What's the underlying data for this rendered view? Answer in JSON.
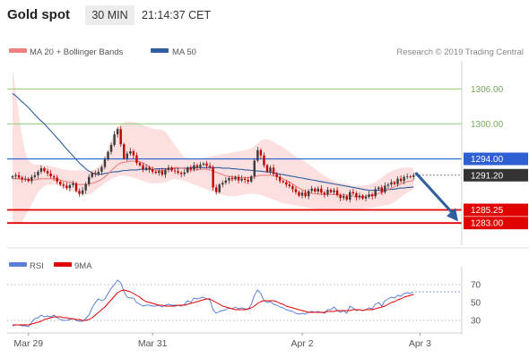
{
  "header": {
    "title": "Gold spot",
    "interval": "30 MIN",
    "time": "21:14:37 CET"
  },
  "legend": {
    "items": [
      {
        "label": "MA 20 + Bollinger Bands",
        "color": "#f08080"
      },
      {
        "label": "MA 50",
        "color": "#2f5f9e"
      }
    ]
  },
  "credit": "Research © 2019 Trading Central",
  "rsi_legend": {
    "items": [
      {
        "label": "RSI",
        "color": "#5b7fd6"
      },
      {
        "label": "9MA",
        "color": "#e00000"
      }
    ]
  },
  "colors": {
    "up": "#3a3a3a",
    "down": "#c00000",
    "resistance": "#8fd07a",
    "support": "#e00000",
    "pivot": "#2e5fd3",
    "band_fill": "#fbdada",
    "ma20": "#f08080",
    "ma50": "#2f5f9e",
    "arrow": "#2f5f9e",
    "last_price_tag": "#333333"
  },
  "chart_data": [
    {
      "type": "candlestick",
      "title": "Gold spot",
      "interval": "30 MIN",
      "ylim": [
        1279.5,
        1310.5
      ],
      "x_ticks": [
        "Mar 29",
        "Mar 31",
        "Apr 2",
        "Apr 3"
      ],
      "y_ticks": [
        1306.0,
        1300.0,
        1294.0,
        1291.2,
        1285.25,
        1283.0
      ],
      "levels": [
        {
          "value": 1306.0,
          "label": "1306.00",
          "kind": "resistance"
        },
        {
          "value": 1300.0,
          "label": "1300.00",
          "kind": "resistance"
        },
        {
          "value": 1294.0,
          "label": "1294.00",
          "kind": "pivot"
        },
        {
          "value": 1285.25,
          "label": "1285.25",
          "kind": "support"
        },
        {
          "value": 1283.0,
          "label": "1283.00",
          "kind": "support"
        }
      ],
      "last_price": {
        "value": 1291.2,
        "label": "1291.20"
      },
      "forecast_arrow": {
        "from": 1291.5,
        "to": 1284.5
      },
      "series": [
        {
          "name": "Gold spot",
          "style": "candles",
          "close": [
            1291.0,
            1291.2,
            1290.8,
            1290.5,
            1290.6,
            1290.2,
            1290.9,
            1291.2,
            1291.8,
            1292.4,
            1291.9,
            1291.5,
            1291.0,
            1290.8,
            1290.1,
            1289.6,
            1289.4,
            1289.0,
            1289.5,
            1289.8,
            1288.5,
            1288.0,
            1288.6,
            1289.7,
            1290.9,
            1291.6,
            1291.4,
            1291.8,
            1292.6,
            1293.9,
            1295.2,
            1296.4,
            1298.2,
            1299.1,
            1296.5,
            1294.1,
            1294.9,
            1295.3,
            1294.6,
            1293.3,
            1292.9,
            1292.2,
            1292.5,
            1292.2,
            1291.8,
            1291.6,
            1291.9,
            1291.3,
            1292.1,
            1292.5,
            1292.0,
            1291.9,
            1291.6,
            1291.4,
            1291.7,
            1292.5,
            1292.2,
            1292.9,
            1292.6,
            1293.0,
            1293.2,
            1292.8,
            1292.6,
            1289.1,
            1288.3,
            1289.6,
            1289.9,
            1290.3,
            1290.7,
            1290.5,
            1290.9,
            1290.3,
            1290.6,
            1290.4,
            1290.1,
            1291.0,
            1293.7,
            1295.5,
            1294.6,
            1292.9,
            1291.8,
            1292.5,
            1291.4,
            1290.9,
            1290.2,
            1290.0,
            1289.6,
            1289.3,
            1288.8,
            1288.3,
            1287.7,
            1288.2,
            1287.6,
            1288.5,
            1288.9,
            1288.4,
            1288.9,
            1288.2,
            1287.9,
            1288.7,
            1288.3,
            1288.6,
            1287.8,
            1287.3,
            1287.6,
            1287.0,
            1288.3,
            1288.1,
            1287.4,
            1287.7,
            1287.2,
            1287.5,
            1287.9,
            1287.6,
            1288.8,
            1289.1,
            1288.3,
            1289.4,
            1289.6,
            1290.0,
            1289.7,
            1290.6,
            1290.2,
            1290.9,
            1291.0,
            1290.9,
            1291.2
          ]
        },
        {
          "name": "MA 20",
          "style": "line",
          "y": [
            1290.6,
            1290.6,
            1290.6,
            1290.5,
            1290.5,
            1290.4,
            1290.4,
            1290.4,
            1290.5,
            1290.6,
            1290.6,
            1290.6,
            1290.6,
            1290.6,
            1290.5,
            1290.4,
            1290.2,
            1290.1,
            1290.0,
            1289.9,
            1289.7,
            1289.6,
            1289.6,
            1289.6,
            1289.7,
            1289.8,
            1290.0,
            1290.2,
            1290.5,
            1290.9,
            1291.4,
            1292.0,
            1292.5,
            1293.0,
            1293.3,
            1293.4,
            1293.5,
            1293.6,
            1293.6,
            1293.6,
            1293.5,
            1293.3,
            1293.0,
            1292.6,
            1292.3,
            1292.1,
            1292.0,
            1292.0,
            1292.1,
            1292.3,
            1292.4,
            1292.5,
            1292.5,
            1292.4,
            1292.3,
            1292.2,
            1292.1,
            1292.1,
            1292.1,
            1292.2,
            1292.2,
            1292.2,
            1292.1,
            1291.9,
            1291.7,
            1291.5,
            1291.3,
            1291.1,
            1291.0,
            1290.9,
            1290.9,
            1290.8,
            1290.8,
            1290.8,
            1290.8,
            1290.8,
            1290.9,
            1291.1,
            1291.2,
            1291.2,
            1291.2,
            1291.2,
            1291.1,
            1291.0,
            1290.8,
            1290.6,
            1290.3,
            1290.0,
            1289.7,
            1289.3,
            1289.0,
            1288.7,
            1288.4,
            1288.2,
            1288.1,
            1288.0,
            1288.0,
            1287.9,
            1287.9,
            1287.9,
            1287.9,
            1287.9,
            1287.9,
            1287.8,
            1287.8,
            1287.8,
            1287.7,
            1287.6,
            1287.5,
            1287.5,
            1287.5,
            1287.6,
            1287.7,
            1287.8,
            1287.9,
            1288.1,
            1288.2,
            1288.5,
            1288.7,
            1289.0,
            1289.2,
            1289.5,
            1289.7,
            1289.9,
            1290.1,
            1290.2,
            1290.3
          ]
        },
        {
          "name": "MA 50",
          "style": "line",
          "y": [
            1305.2,
            1304.8,
            1304.3,
            1303.8,
            1303.3,
            1302.8,
            1302.2,
            1301.6,
            1301.0,
            1300.5,
            1300.0,
            1299.4,
            1298.8,
            1298.2,
            1297.6,
            1297.0,
            1296.3,
            1295.7,
            1295.1,
            1294.5,
            1293.9,
            1293.3,
            1292.8,
            1292.3,
            1291.9,
            1291.6,
            1291.4,
            1291.3,
            1291.4,
            1291.5,
            1291.6,
            1291.7,
            1291.8,
            1291.8,
            1291.9,
            1292.0,
            1292.0,
            1292.1,
            1292.1,
            1292.1,
            1292.2,
            1292.2,
            1292.2,
            1292.2,
            1292.2,
            1292.3,
            1292.3,
            1292.3,
            1292.3,
            1292.3,
            1292.3,
            1292.4,
            1292.4,
            1292.4,
            1292.4,
            1292.4,
            1292.5,
            1292.5,
            1292.5,
            1292.5,
            1292.5,
            1292.5,
            1292.5,
            1292.5,
            1292.5,
            1292.5,
            1292.4,
            1292.4,
            1292.4,
            1292.3,
            1292.3,
            1292.2,
            1292.2,
            1292.1,
            1292.1,
            1292.0,
            1292.0,
            1291.9,
            1291.9,
            1291.8,
            1291.8,
            1291.7,
            1291.6,
            1291.5,
            1291.4,
            1291.3,
            1291.2,
            1291.1,
            1291.0,
            1290.9,
            1290.8,
            1290.7,
            1290.6,
            1290.5,
            1290.4,
            1290.3,
            1290.2,
            1290.1,
            1290.0,
            1289.9,
            1289.8,
            1289.7,
            1289.6,
            1289.5,
            1289.4,
            1289.3,
            1289.2,
            1289.1,
            1289.0,
            1288.9,
            1288.8,
            1288.7,
            1288.6,
            1288.6,
            1288.6,
            1288.6,
            1288.6,
            1288.7,
            1288.7,
            1288.8,
            1288.8,
            1288.9,
            1289.0,
            1289.0,
            1289.1,
            1289.1,
            1289.2
          ]
        },
        {
          "name": "Bollinger upper",
          "style": "band",
          "y": [
            1309.5,
            1305.5,
            1301.5,
            1298.0,
            1295.2,
            1293.8,
            1293.2,
            1293.0,
            1293.0,
            1293.0,
            1292.9,
            1292.9,
            1292.8,
            1292.6,
            1292.5,
            1292.3,
            1292.2,
            1292.1,
            1292.0,
            1292.0,
            1292.0,
            1292.0,
            1292.0,
            1292.0,
            1292.0,
            1292.1,
            1292.3,
            1292.7,
            1293.3,
            1294.3,
            1295.7,
            1297.2,
            1298.6,
            1299.5,
            1300.0,
            1300.3,
            1300.4,
            1300.4,
            1300.3,
            1300.2,
            1300.0,
            1299.8,
            1299.6,
            1299.4,
            1299.2,
            1299.1,
            1299.0,
            1299.0,
            1298.7,
            1298.0,
            1297.2,
            1296.4,
            1295.6,
            1294.9,
            1294.3,
            1294.0,
            1293.9,
            1293.9,
            1294.0,
            1294.1,
            1294.2,
            1294.3,
            1294.4,
            1294.5,
            1294.6,
            1294.7,
            1294.8,
            1294.9,
            1295.0,
            1295.1,
            1295.2,
            1295.3,
            1295.4,
            1295.5,
            1295.6,
            1295.8,
            1296.2,
            1296.7,
            1297.1,
            1297.4,
            1297.4,
            1297.2,
            1296.9,
            1296.6,
            1296.3,
            1296.0,
            1295.6,
            1295.2,
            1294.8,
            1294.4,
            1294.1,
            1293.8,
            1293.5,
            1293.1,
            1292.7,
            1292.3,
            1291.9,
            1291.5,
            1291.1,
            1290.8,
            1290.5,
            1290.2,
            1290.0,
            1289.9,
            1289.8,
            1289.7,
            1289.6,
            1289.5,
            1289.4,
            1289.4,
            1289.4,
            1289.5,
            1289.6,
            1289.8,
            1290.0,
            1290.4,
            1290.8,
            1291.2,
            1291.6,
            1291.9,
            1292.1,
            1292.3,
            1292.4,
            1292.5,
            1292.5,
            1292.5,
            1292.5
          ]
        },
        {
          "name": "Bollinger lower",
          "style": "band",
          "y": [
            1283.3,
            1282.9,
            1282.8,
            1283.2,
            1284.2,
            1285.2,
            1286.3,
            1287.3,
            1288.2,
            1288.9,
            1289.3,
            1289.5,
            1289.6,
            1289.6,
            1289.5,
            1289.3,
            1289.0,
            1288.8,
            1288.6,
            1288.4,
            1288.2,
            1288.0,
            1287.9,
            1287.8,
            1287.9,
            1288.2,
            1288.6,
            1289.0,
            1289.4,
            1289.8,
            1290.2,
            1290.5,
            1290.8,
            1291.0,
            1291.1,
            1291.1,
            1291.0,
            1290.9,
            1290.8,
            1290.6,
            1290.4,
            1290.2,
            1290.0,
            1289.9,
            1289.8,
            1289.8,
            1289.8,
            1289.9,
            1290.0,
            1290.2,
            1290.4,
            1290.5,
            1290.5,
            1290.4,
            1290.2,
            1290.0,
            1289.8,
            1289.6,
            1289.4,
            1289.2,
            1289.0,
            1288.8,
            1288.6,
            1288.4,
            1288.2,
            1288.0,
            1287.8,
            1287.7,
            1287.6,
            1287.6,
            1287.6,
            1287.7,
            1287.8,
            1287.9,
            1288.0,
            1288.0,
            1288.0,
            1287.9,
            1287.8,
            1287.6,
            1287.4,
            1287.2,
            1287.0,
            1286.8,
            1286.6,
            1286.4,
            1286.3,
            1286.2,
            1286.1,
            1286.0,
            1285.9,
            1285.8,
            1285.7,
            1285.6,
            1285.5,
            1285.4,
            1285.4,
            1285.4,
            1285.4,
            1285.4,
            1285.4,
            1285.4,
            1285.4,
            1285.4,
            1285.4,
            1285.4,
            1285.4,
            1285.4,
            1285.4,
            1285.4,
            1285.5,
            1285.5,
            1285.6,
            1285.6,
            1285.7,
            1285.8,
            1285.9,
            1286.0,
            1286.1,
            1286.3,
            1286.6,
            1287.0,
            1287.4,
            1287.8,
            1288.2,
            1288.5,
            1288.8
          ]
        }
      ]
    },
    {
      "type": "line",
      "title": "RSI",
      "ylim": [
        18,
        82
      ],
      "y_ticks": [
        70,
        50,
        30
      ],
      "reference_lines": [
        70,
        30
      ],
      "series": [
        {
          "name": "RSI",
          "y": [
            24,
            25,
            25,
            24,
            24,
            23,
            28,
            32,
            33,
            36,
            34,
            35,
            34,
            36,
            33,
            31,
            30,
            30,
            31,
            32,
            30,
            29,
            29,
            32,
            36,
            44,
            50,
            54,
            52,
            54,
            60,
            66,
            70,
            75,
            72,
            62,
            56,
            55,
            55,
            50,
            48,
            46,
            47,
            47,
            46,
            46,
            47,
            45,
            47,
            48,
            47,
            47,
            47,
            46,
            48,
            52,
            50,
            55,
            54,
            55,
            56,
            54,
            53,
            42,
            38,
            40,
            41,
            42,
            44,
            43,
            45,
            43,
            44,
            43,
            42,
            48,
            58,
            64,
            60,
            52,
            50,
            51,
            48,
            47,
            45,
            44,
            42,
            41,
            40,
            38,
            37,
            38,
            37,
            39,
            40,
            39,
            40,
            39,
            38,
            42,
            42,
            45,
            41,
            39,
            41,
            38,
            46,
            44,
            41,
            42,
            41,
            42,
            44,
            43,
            48,
            50,
            46,
            52,
            54,
            56,
            55,
            58,
            57,
            60,
            61,
            60,
            62
          ]
        },
        {
          "name": "9MA",
          "y": [
            25,
            25,
            25,
            25,
            25,
            25,
            26,
            27,
            28,
            29,
            31,
            32,
            33,
            34,
            34,
            34,
            33,
            33,
            32,
            32,
            31,
            31,
            30,
            30,
            31,
            33,
            36,
            39,
            42,
            45,
            49,
            53,
            57,
            61,
            63,
            64,
            63,
            62,
            60,
            58,
            56,
            53,
            51,
            50,
            49,
            48,
            47,
            47,
            46,
            46,
            46,
            46,
            47,
            47,
            47,
            48,
            49,
            50,
            51,
            52,
            53,
            54,
            54,
            52,
            50,
            48,
            46,
            45,
            44,
            43,
            42,
            42,
            42,
            42,
            43,
            44,
            46,
            49,
            51,
            52,
            52,
            52,
            52,
            51,
            49,
            48,
            46,
            45,
            44,
            43,
            42,
            41,
            40,
            39,
            39,
            39,
            39,
            39,
            39,
            40,
            40,
            40,
            41,
            41,
            41,
            41,
            41,
            42,
            42,
            42,
            41,
            42,
            42,
            42,
            43,
            44,
            45,
            46,
            48,
            50,
            51,
            53,
            54,
            56,
            57,
            58,
            59
          ]
        }
      ]
    }
  ]
}
